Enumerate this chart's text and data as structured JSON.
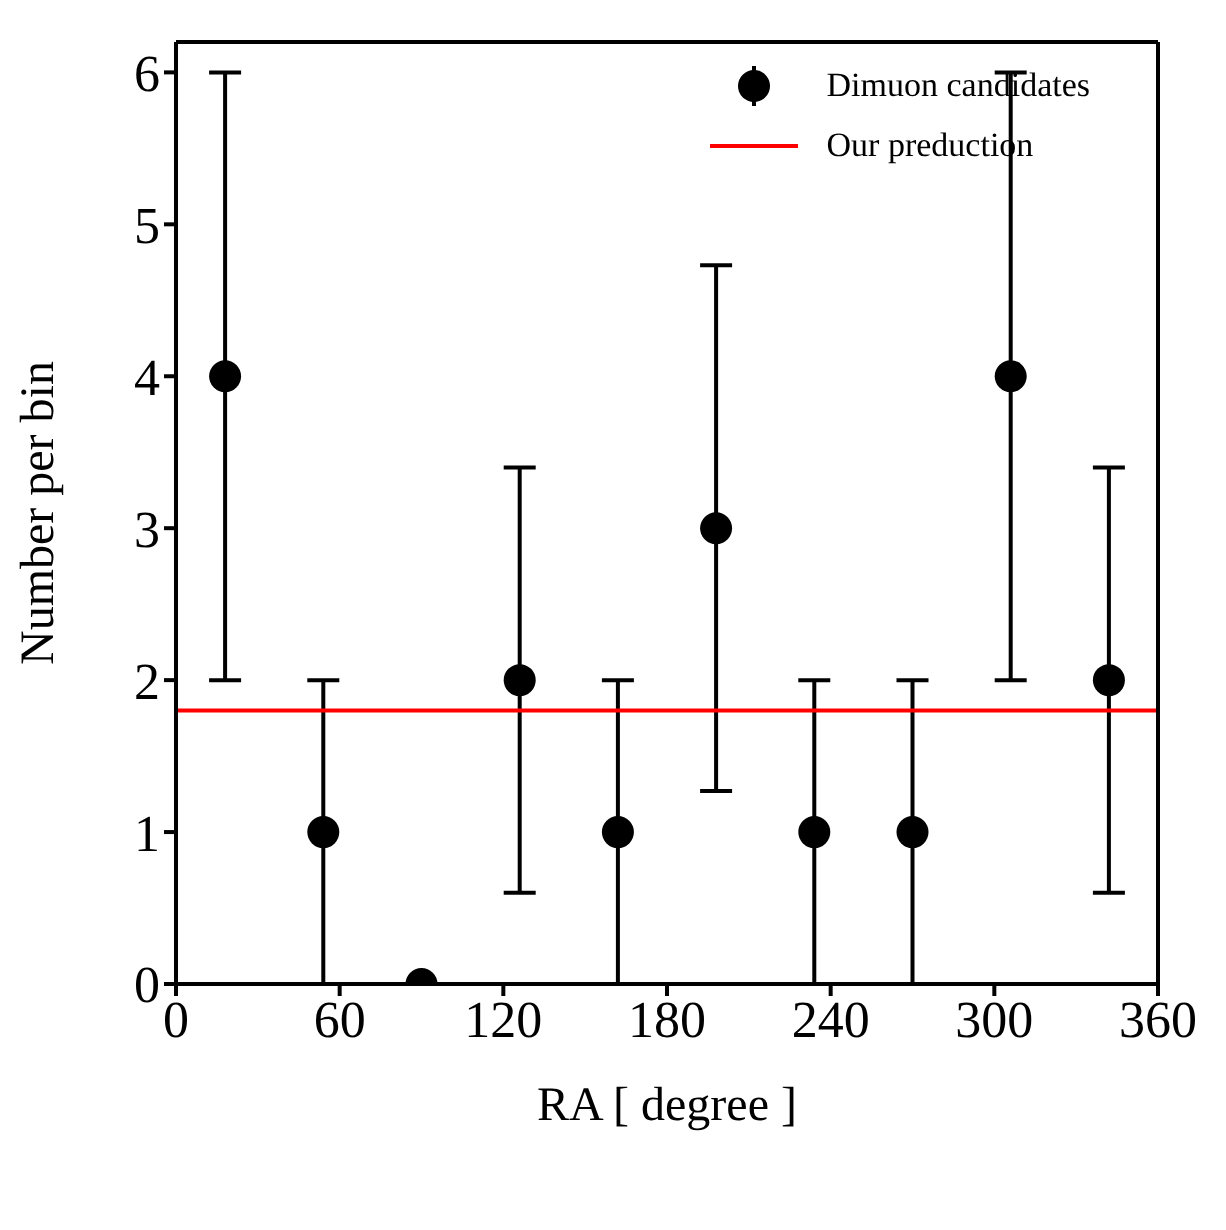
{
  "chart_data": {
    "type": "scatter",
    "xlabel": "RA  [ degree ]",
    "ylabel": "Number per bin",
    "series": [
      {
        "name": "Dimuon candidates",
        "color": "#000000",
        "marker": "circle",
        "x": [
          18,
          54,
          90,
          126,
          162,
          198,
          234,
          270,
          306,
          342
        ],
        "values": [
          4,
          1,
          0,
          2,
          1,
          3,
          1,
          1,
          4,
          2
        ],
        "errors": [
          2,
          1,
          null,
          1.4,
          1,
          1.73,
          1,
          1,
          2,
          1.4
        ]
      },
      {
        "name": "Our preduction",
        "type": "line",
        "marker": "none",
        "color": "#ff0000",
        "x": [
          0,
          360
        ],
        "values": [
          1.8,
          1.8
        ]
      }
    ],
    "xlim": [
      0,
      360
    ],
    "xticks": [
      0,
      60,
      120,
      180,
      240,
      300,
      360
    ],
    "ylim": [
      0,
      6.2
    ],
    "yticks": [
      0,
      1,
      2,
      3,
      4,
      5,
      6
    ],
    "legend": "top right"
  }
}
